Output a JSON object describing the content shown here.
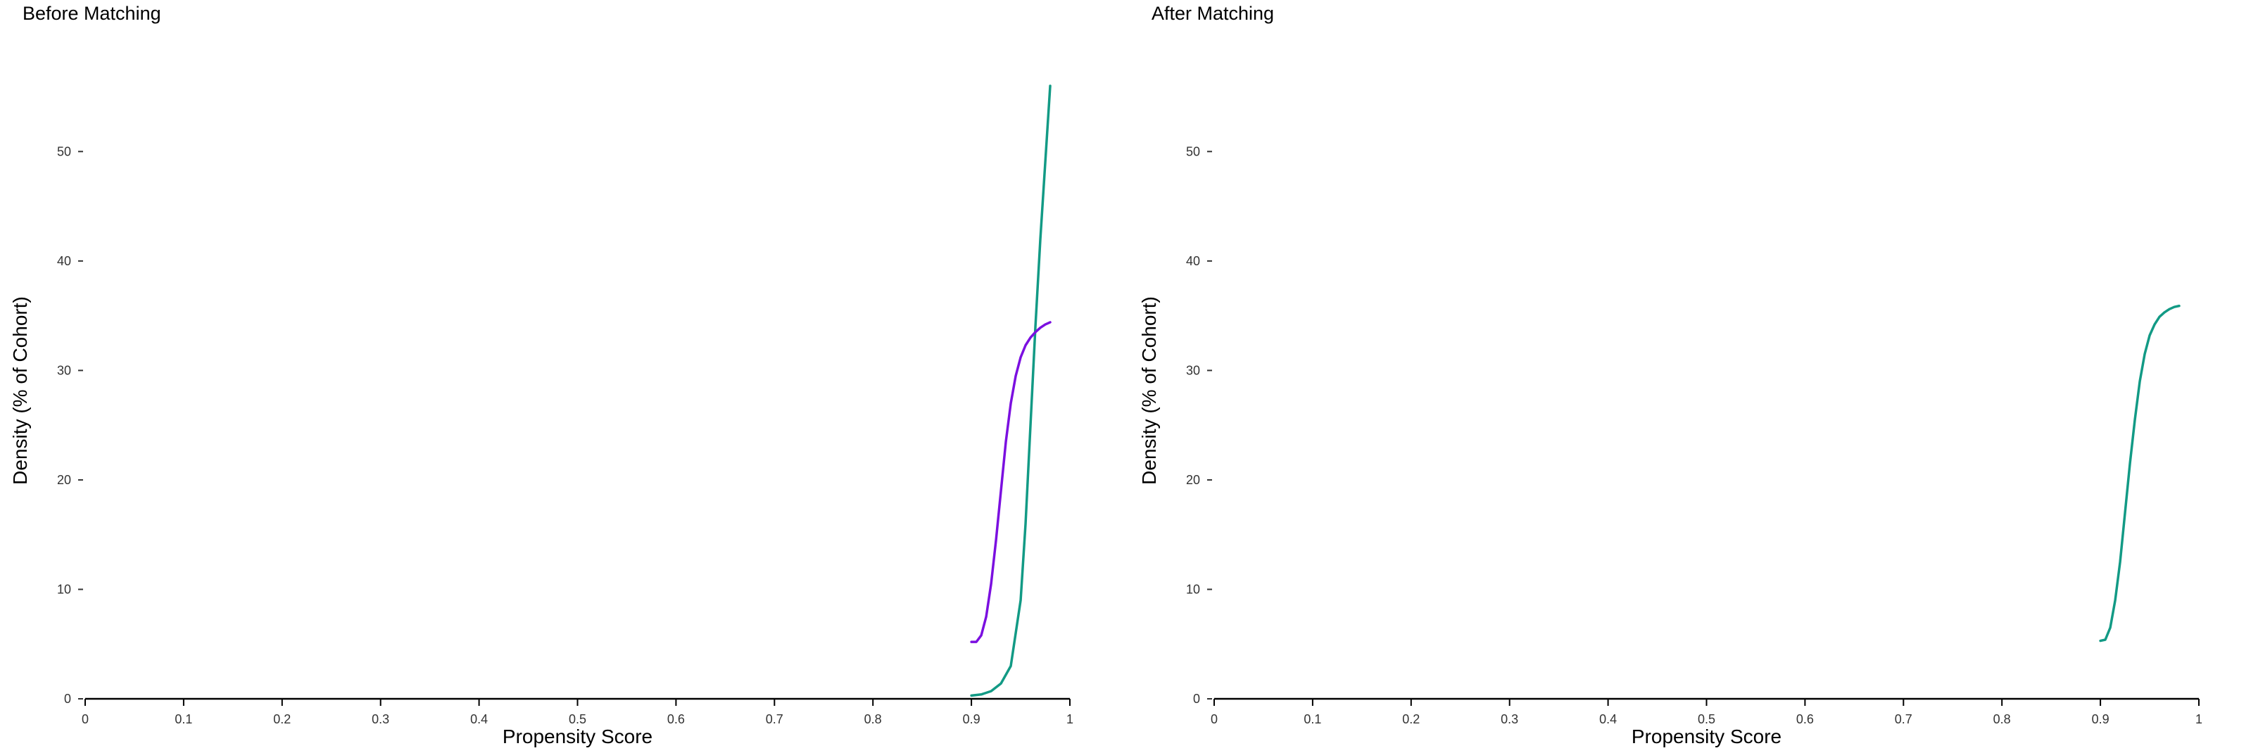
{
  "colors": {
    "teal": "#129a85",
    "purple": "#7b0fe0",
    "axis": "#000000"
  },
  "chart_data": [
    {
      "type": "line",
      "title": "Before Matching",
      "xlabel": "Propensity Score",
      "ylabel": "Density (% of Cohort)",
      "xlim": [
        0,
        1
      ],
      "ylim": [
        0,
        56
      ],
      "x_ticks": [
        "0",
        "0.1",
        "0.2",
        "0.3",
        "0.4",
        "0.5",
        "0.6",
        "0.7",
        "0.8",
        "0.9",
        "1"
      ],
      "y_ticks": [
        "0",
        "10",
        "20",
        "30",
        "40",
        "50"
      ],
      "grid": false,
      "series": [
        {
          "color": "#129a85",
          "x": [
            0.9,
            0.91,
            0.92,
            0.93,
            0.94,
            0.95,
            0.955,
            0.96,
            0.965,
            0.97,
            0.975,
            0.98
          ],
          "y": [
            0.3,
            0.4,
            0.7,
            1.4,
            3.0,
            9.0,
            16.0,
            25.0,
            34.0,
            42.0,
            49.0,
            56.0
          ]
        },
        {
          "color": "#7b0fe0",
          "x": [
            0.9,
            0.905,
            0.91,
            0.915,
            0.92,
            0.925,
            0.93,
            0.935,
            0.94,
            0.945,
            0.95,
            0.955,
            0.96,
            0.965,
            0.97,
            0.975,
            0.98
          ],
          "y": [
            5.2,
            5.2,
            5.8,
            7.5,
            10.5,
            14.5,
            19.0,
            23.5,
            27.0,
            29.5,
            31.2,
            32.3,
            33.0,
            33.5,
            33.9,
            34.2,
            34.4
          ]
        }
      ]
    },
    {
      "type": "line",
      "title": "After Matching",
      "xlabel": "Propensity Score",
      "ylabel": "Density (% of Cohort)",
      "xlim": [
        0,
        1
      ],
      "ylim": [
        0,
        56
      ],
      "x_ticks": [
        "0",
        "0.1",
        "0.2",
        "0.3",
        "0.4",
        "0.5",
        "0.6",
        "0.7",
        "0.8",
        "0.9",
        "1"
      ],
      "y_ticks": [
        "0",
        "10",
        "20",
        "30",
        "40",
        "50"
      ],
      "grid": false,
      "series": [
        {
          "color": "#129a85",
          "x": [
            0.9,
            0.905,
            0.91,
            0.915,
            0.92,
            0.925,
            0.93,
            0.935,
            0.94,
            0.945,
            0.95,
            0.955,
            0.96,
            0.965,
            0.97,
            0.975,
            0.98
          ],
          "y": [
            5.3,
            5.4,
            6.5,
            9.0,
            12.5,
            17.0,
            21.5,
            25.5,
            29.0,
            31.5,
            33.2,
            34.2,
            34.9,
            35.3,
            35.6,
            35.8,
            35.9
          ]
        }
      ]
    }
  ]
}
